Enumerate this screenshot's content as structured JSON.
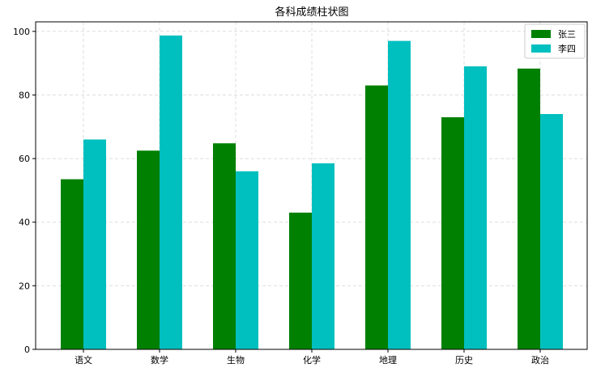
{
  "chart_data": {
    "type": "bar",
    "title": "各科成绩柱状图",
    "xlabel": "",
    "ylabel": "",
    "categories": [
      "语文",
      "数学",
      "生物",
      "化学",
      "地理",
      "历史",
      "政治"
    ],
    "series": [
      {
        "name": "张三",
        "color": "#008000",
        "values": [
          53.5,
          62.5,
          64.8,
          43,
          83,
          73,
          88.3
        ]
      },
      {
        "name": "李四",
        "color": "#00BFBF",
        "values": [
          66,
          98.7,
          56,
          58.5,
          97,
          89,
          74
        ]
      }
    ],
    "ylim": [
      0,
      103
    ],
    "yticks": [
      0,
      20,
      40,
      60,
      80,
      100
    ],
    "grid": true,
    "legend_position": "top-right"
  }
}
